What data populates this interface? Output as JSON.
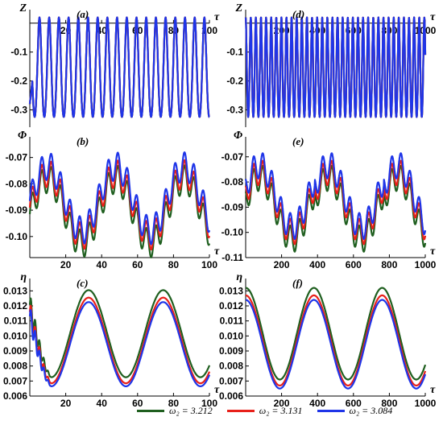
{
  "chart_data": [
    {
      "panel": "(a)",
      "type": "line",
      "ylabel": "Z",
      "xlabel": "τ",
      "xlim": [
        0,
        100
      ],
      "ylim": [
        -0.36,
        0.03
      ],
      "xticks": [
        20,
        40,
        60,
        80,
        100
      ],
      "xtick_labels": [
        "20",
        "40",
        "60",
        "80",
        "100"
      ],
      "yticks": [
        -0.1,
        -0.2,
        -0.3
      ],
      "ytick_labels": [
        "-0.1",
        "-0.2",
        "-0.3"
      ],
      "series": [
        {
          "name": "ω₂ = 3.212",
          "color": "#1f5f1f",
          "y_range": [
            -0.355,
            0.02
          ]
        },
        {
          "name": "ω₂ = 3.131",
          "color": "#e8201a",
          "y_range": [
            -0.355,
            0.02
          ]
        },
        {
          "name": "ω₂ = 3.084",
          "color": "#1f35e8",
          "y_range": [
            -0.355,
            0.02
          ]
        }
      ]
    },
    {
      "panel": "(d)",
      "type": "line",
      "ylabel": "Z",
      "xlabel": "τ",
      "xlim": [
        0,
        1000
      ],
      "ylim": [
        -0.36,
        0.03
      ],
      "xticks": [
        200,
        400,
        600,
        800,
        1000
      ],
      "xtick_labels": [
        "200",
        "400",
        "600",
        "800",
        "1000"
      ],
      "yticks": [
        -0.1,
        -0.2,
        -0.3
      ],
      "ytick_labels": [
        "-0.1",
        "-0.2",
        "-0.3"
      ],
      "series": [
        {
          "name": "ω₂ = 3.212",
          "color": "#1f5f1f",
          "y_range": [
            -0.355,
            0.02
          ]
        },
        {
          "name": "ω₂ = 3.131",
          "color": "#e8201a",
          "y_range": [
            -0.355,
            0.02
          ]
        },
        {
          "name": "ω₂ = 3.084",
          "color": "#1f35e8",
          "y_range": [
            -0.355,
            0.02
          ]
        }
      ]
    },
    {
      "panel": "(b)",
      "type": "line",
      "ylabel": "Φ",
      "xlabel": "τ",
      "xlim": [
        0,
        100
      ],
      "ylim": [
        -0.108,
        -0.064
      ],
      "xticks": [
        20,
        40,
        60,
        80,
        100
      ],
      "xtick_labels": [
        "20",
        "40",
        "60",
        "80",
        "100"
      ],
      "yticks": [
        -0.07,
        -0.08,
        -0.09,
        -0.1
      ],
      "ytick_labels": [
        "-0.07",
        "-0.08",
        "-0.09",
        "-0.10"
      ],
      "series": [
        {
          "name": "ω₂ = 3.212",
          "color": "#1f5f1f",
          "y_range": [
            -0.108,
            -0.073
          ]
        },
        {
          "name": "ω₂ = 3.131",
          "color": "#e8201a",
          "y_range": [
            -0.105,
            -0.071
          ]
        },
        {
          "name": "ω₂ = 3.084",
          "color": "#1f35e8",
          "y_range": [
            -0.103,
            -0.068
          ]
        }
      ]
    },
    {
      "panel": "(e)",
      "type": "line",
      "ylabel": "Φ",
      "xlabel": "τ",
      "xlim": [
        0,
        1000
      ],
      "ylim": [
        -0.11,
        -0.064
      ],
      "xticks": [
        200,
        400,
        600,
        800,
        1000
      ],
      "xtick_labels": [
        "200",
        "400",
        "600",
        "800",
        "1000"
      ],
      "yticks": [
        -0.07,
        -0.08,
        -0.09,
        -0.1,
        -0.11
      ],
      "ytick_labels": [
        "-0.07",
        "-0.08",
        "-0.09",
        "-0.10",
        "-0.11"
      ],
      "series": [
        {
          "name": "ω₂ = 3.212",
          "color": "#1f5f1f",
          "y_range": [
            -0.108,
            -0.073
          ]
        },
        {
          "name": "ω₂ = 3.131",
          "color": "#e8201a",
          "y_range": [
            -0.105,
            -0.071
          ]
        },
        {
          "name": "ω₂ = 3.084",
          "color": "#1f35e8",
          "y_range": [
            -0.103,
            -0.068
          ]
        }
      ]
    },
    {
      "panel": "(c)",
      "type": "line",
      "ylabel": "η",
      "xlabel": "τ",
      "xlim": [
        0,
        100
      ],
      "ylim": [
        0.006,
        0.0135
      ],
      "xticks": [
        20,
        40,
        60,
        80,
        100
      ],
      "xtick_labels": [
        "20",
        "40",
        "60",
        "80",
        "100"
      ],
      "yticks": [
        0.013,
        0.012,
        0.011,
        0.01,
        0.009,
        0.008,
        0.007,
        0.006
      ],
      "ytick_labels": [
        "0.013",
        "0.012",
        "0.011",
        "0.010",
        "0.009",
        "0.008",
        "0.007",
        "0.006"
      ],
      "series": [
        {
          "name": "ω₂ = 3.212",
          "color": "#1f5f1f",
          "y_range": [
            0.0071,
            0.0132
          ]
        },
        {
          "name": "ω₂ = 3.131",
          "color": "#e8201a",
          "y_range": [
            0.0067,
            0.0127
          ]
        },
        {
          "name": "ω₂ = 3.084",
          "color": "#1f35e8",
          "y_range": [
            0.0065,
            0.0124
          ]
        }
      ]
    },
    {
      "panel": "(f)",
      "type": "line",
      "ylabel": "η",
      "xlabel": "τ",
      "xlim": [
        0,
        1000
      ],
      "ylim": [
        0.006,
        0.0135
      ],
      "xticks": [
        200,
        400,
        600,
        800,
        1000
      ],
      "xtick_labels": [
        "200",
        "400",
        "600",
        "800",
        "1000"
      ],
      "yticks": [
        0.013,
        0.012,
        0.011,
        0.01,
        0.009,
        0.008,
        0.007,
        0.006
      ],
      "ytick_labels": [
        "0.013",
        "0.012",
        "0.011",
        "0.010",
        "0.009",
        "0.008",
        "0.007",
        "0.006"
      ],
      "series": [
        {
          "name": "ω₂ = 3.212",
          "color": "#1f5f1f",
          "y_range": [
            0.0071,
            0.0132
          ]
        },
        {
          "name": "ω₂ = 3.131",
          "color": "#e8201a",
          "y_range": [
            0.0067,
            0.0127
          ]
        },
        {
          "name": "ω₂ = 3.084",
          "color": "#1f35e8",
          "y_range": [
            0.0065,
            0.0124
          ]
        }
      ]
    }
  ],
  "legend": {
    "placement": "bottom",
    "items": [
      {
        "label": "ω₂ = 3.212",
        "color": "#1f5f1f"
      },
      {
        "label": "ω₂ = 3.131",
        "color": "#e8201a"
      },
      {
        "label": "ω₂ = 3.084",
        "color": "#1f35e8"
      }
    ]
  }
}
